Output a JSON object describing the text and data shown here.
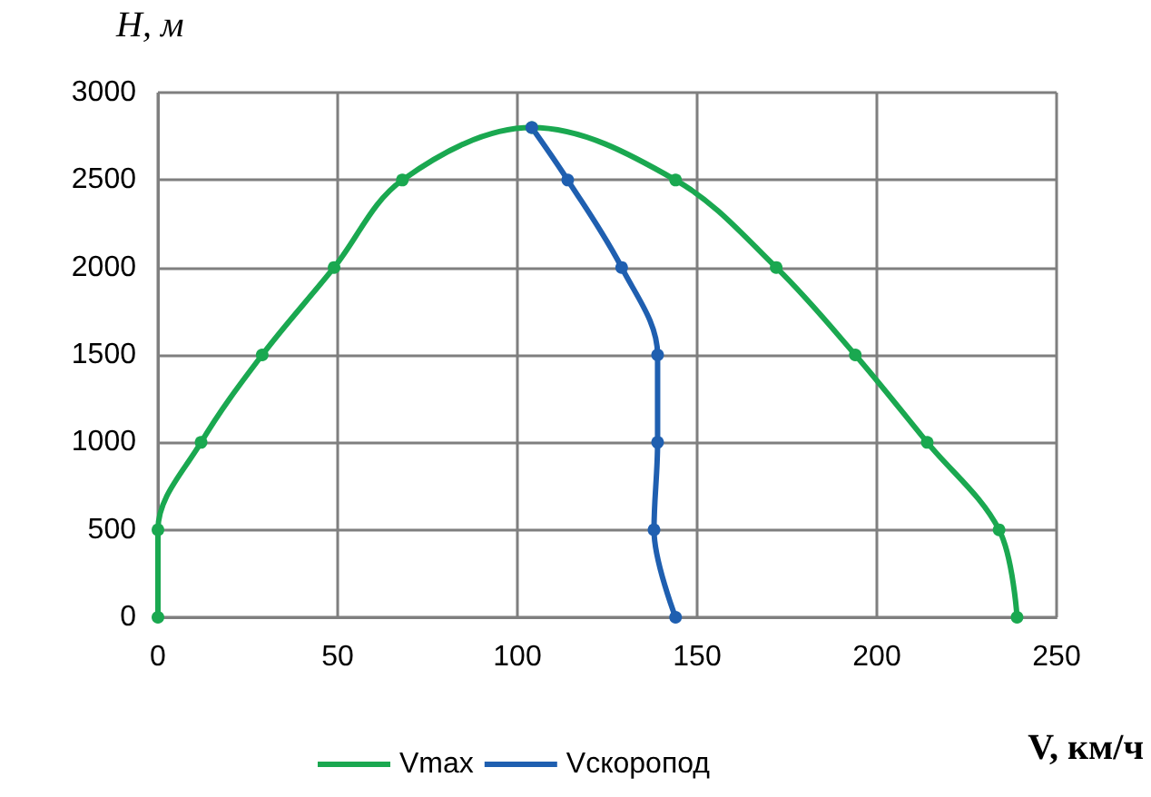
{
  "chart_data": {
    "type": "line",
    "xlabel": "V, км/ч",
    "ylabel": "H, м",
    "xlim": [
      0,
      250
    ],
    "xticks": [
      0,
      50,
      100,
      150,
      200,
      250
    ],
    "ylim": [
      0,
      3000
    ],
    "yticks": [
      0,
      500,
      1000,
      1500,
      2000,
      2500,
      3000
    ],
    "grid": true,
    "legend": "bottom",
    "marker": "circle",
    "line_style": "solid",
    "series": [
      {
        "name": "Vmax",
        "color": "#1aa850",
        "x": [
          0,
          0,
          12,
          29,
          49,
          68,
          104,
          144,
          172,
          194,
          214,
          234,
          239
        ],
        "values": [
          0,
          500,
          1000,
          1500,
          2000,
          2500,
          2800,
          2500,
          2000,
          1500,
          1000,
          500,
          0
        ]
      },
      {
        "name": "Vскоропод",
        "color": "#1f5fb0",
        "x": [
          104,
          114,
          129,
          139,
          139,
          138,
          144
        ],
        "values": [
          2800,
          2500,
          2000,
          1500,
          1000,
          500,
          0
        ]
      }
    ]
  }
}
